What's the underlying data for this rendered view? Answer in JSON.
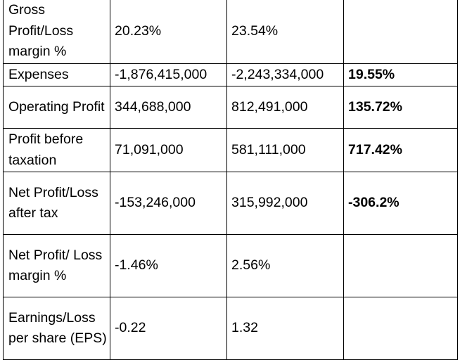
{
  "table": {
    "rows": [
      {
        "label": "Gross Profit/Loss margin %",
        "value_1": "20.23%",
        "value_2": "23.54%",
        "change": ""
      },
      {
        "label": "Expenses",
        "value_1": "-1,876,415,000",
        "value_2": "-2,243,334,000",
        "change": "19.55%"
      },
      {
        "label": "Operating Profit",
        "value_1": "344,688,000",
        "value_2": "812,491,000",
        "change": "135.72%"
      },
      {
        "label": "Profit before taxation",
        "value_1": "71,091,000",
        "value_2": "581,111,000",
        "change": "717.42%"
      },
      {
        "label": "Net Profit/Loss after tax",
        "value_1": "-153,246,000",
        "value_2": "315,992,000",
        "change": "-306.2%"
      },
      {
        "label": "Net Profit/ Loss margin %",
        "value_1": "-1.46%",
        "value_2": "2.56%",
        "change": ""
      },
      {
        "label": "Earnings/Loss per share (EPS)",
        "value_1": "-0.22",
        "value_2": "1.32",
        "change": ""
      }
    ]
  }
}
